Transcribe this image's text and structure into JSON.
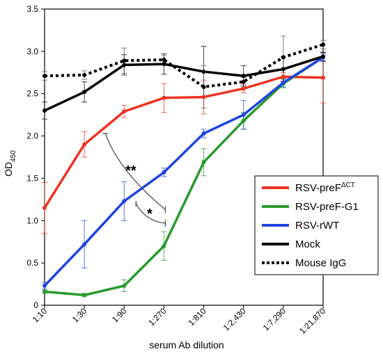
{
  "chart_data": {
    "type": "line",
    "xlabel": "serum Ab dilution",
    "ylabel": "OD",
    "ylabel_sub": "450",
    "categories": [
      "1:10",
      "1:30",
      "1:90",
      "1:270",
      "1:810",
      "1:2,430",
      "1:7,290",
      "1:21,870"
    ],
    "ylim": [
      0,
      3.5
    ],
    "yticks": [
      "0",
      "0.5",
      "1.0",
      "1.5",
      "2.0",
      "2.5",
      "3.0",
      "3.5"
    ],
    "legend_position": "right",
    "series": [
      {
        "name": "RSV-preF",
        "name_sup": "ΔCT",
        "color": "#ee3322",
        "style": "solid",
        "values": [
          1.15,
          1.9,
          2.29,
          2.45,
          2.46,
          2.56,
          2.7,
          2.69
        ],
        "errors": [
          0.3,
          0.15,
          0.07,
          0.17,
          0.2,
          0.05,
          0.05,
          0.3
        ]
      },
      {
        "name": "RSV-preF-G1",
        "color": "#2a9a2a",
        "style": "solid",
        "values": [
          0.16,
          0.12,
          0.23,
          0.7,
          1.69,
          2.18,
          2.62,
          2.93
        ],
        "errors": [
          0.02,
          0.02,
          0.07,
          0.17,
          0.16,
          0.1,
          0.05,
          0.05
        ]
      },
      {
        "name": "RSV-rWT",
        "color": "#1f44e0",
        "style": "solid",
        "values": [
          0.23,
          0.72,
          1.23,
          1.57,
          2.03,
          2.25,
          2.63,
          2.93
        ],
        "errors": [
          0.04,
          0.28,
          0.23,
          0.05,
          0.05,
          0.17,
          0.05,
          0.05
        ]
      },
      {
        "name": "Mock",
        "color": "#000000",
        "style": "solid",
        "values": [
          2.3,
          2.52,
          2.84,
          2.85,
          2.76,
          2.71,
          2.79,
          2.94
        ],
        "errors": [
          0.1,
          0.12,
          0.12,
          0.12,
          0.3,
          0.12,
          0.15,
          0.05
        ]
      },
      {
        "name": "Mouse IgG",
        "color": "#000000",
        "style": "dotted",
        "values": [
          2.71,
          2.72,
          2.89,
          2.9,
          2.58,
          2.64,
          2.93,
          3.08
        ],
        "errors": [
          0.05,
          0.05,
          0.15,
          0.05,
          0.25,
          0.05,
          0.25,
          0.05
        ]
      }
    ],
    "annotations": [
      {
        "text": "**",
        "from": "1:30",
        "to": "1:270"
      },
      {
        "text": "*",
        "from": "1:90",
        "to": "1:270"
      }
    ]
  }
}
